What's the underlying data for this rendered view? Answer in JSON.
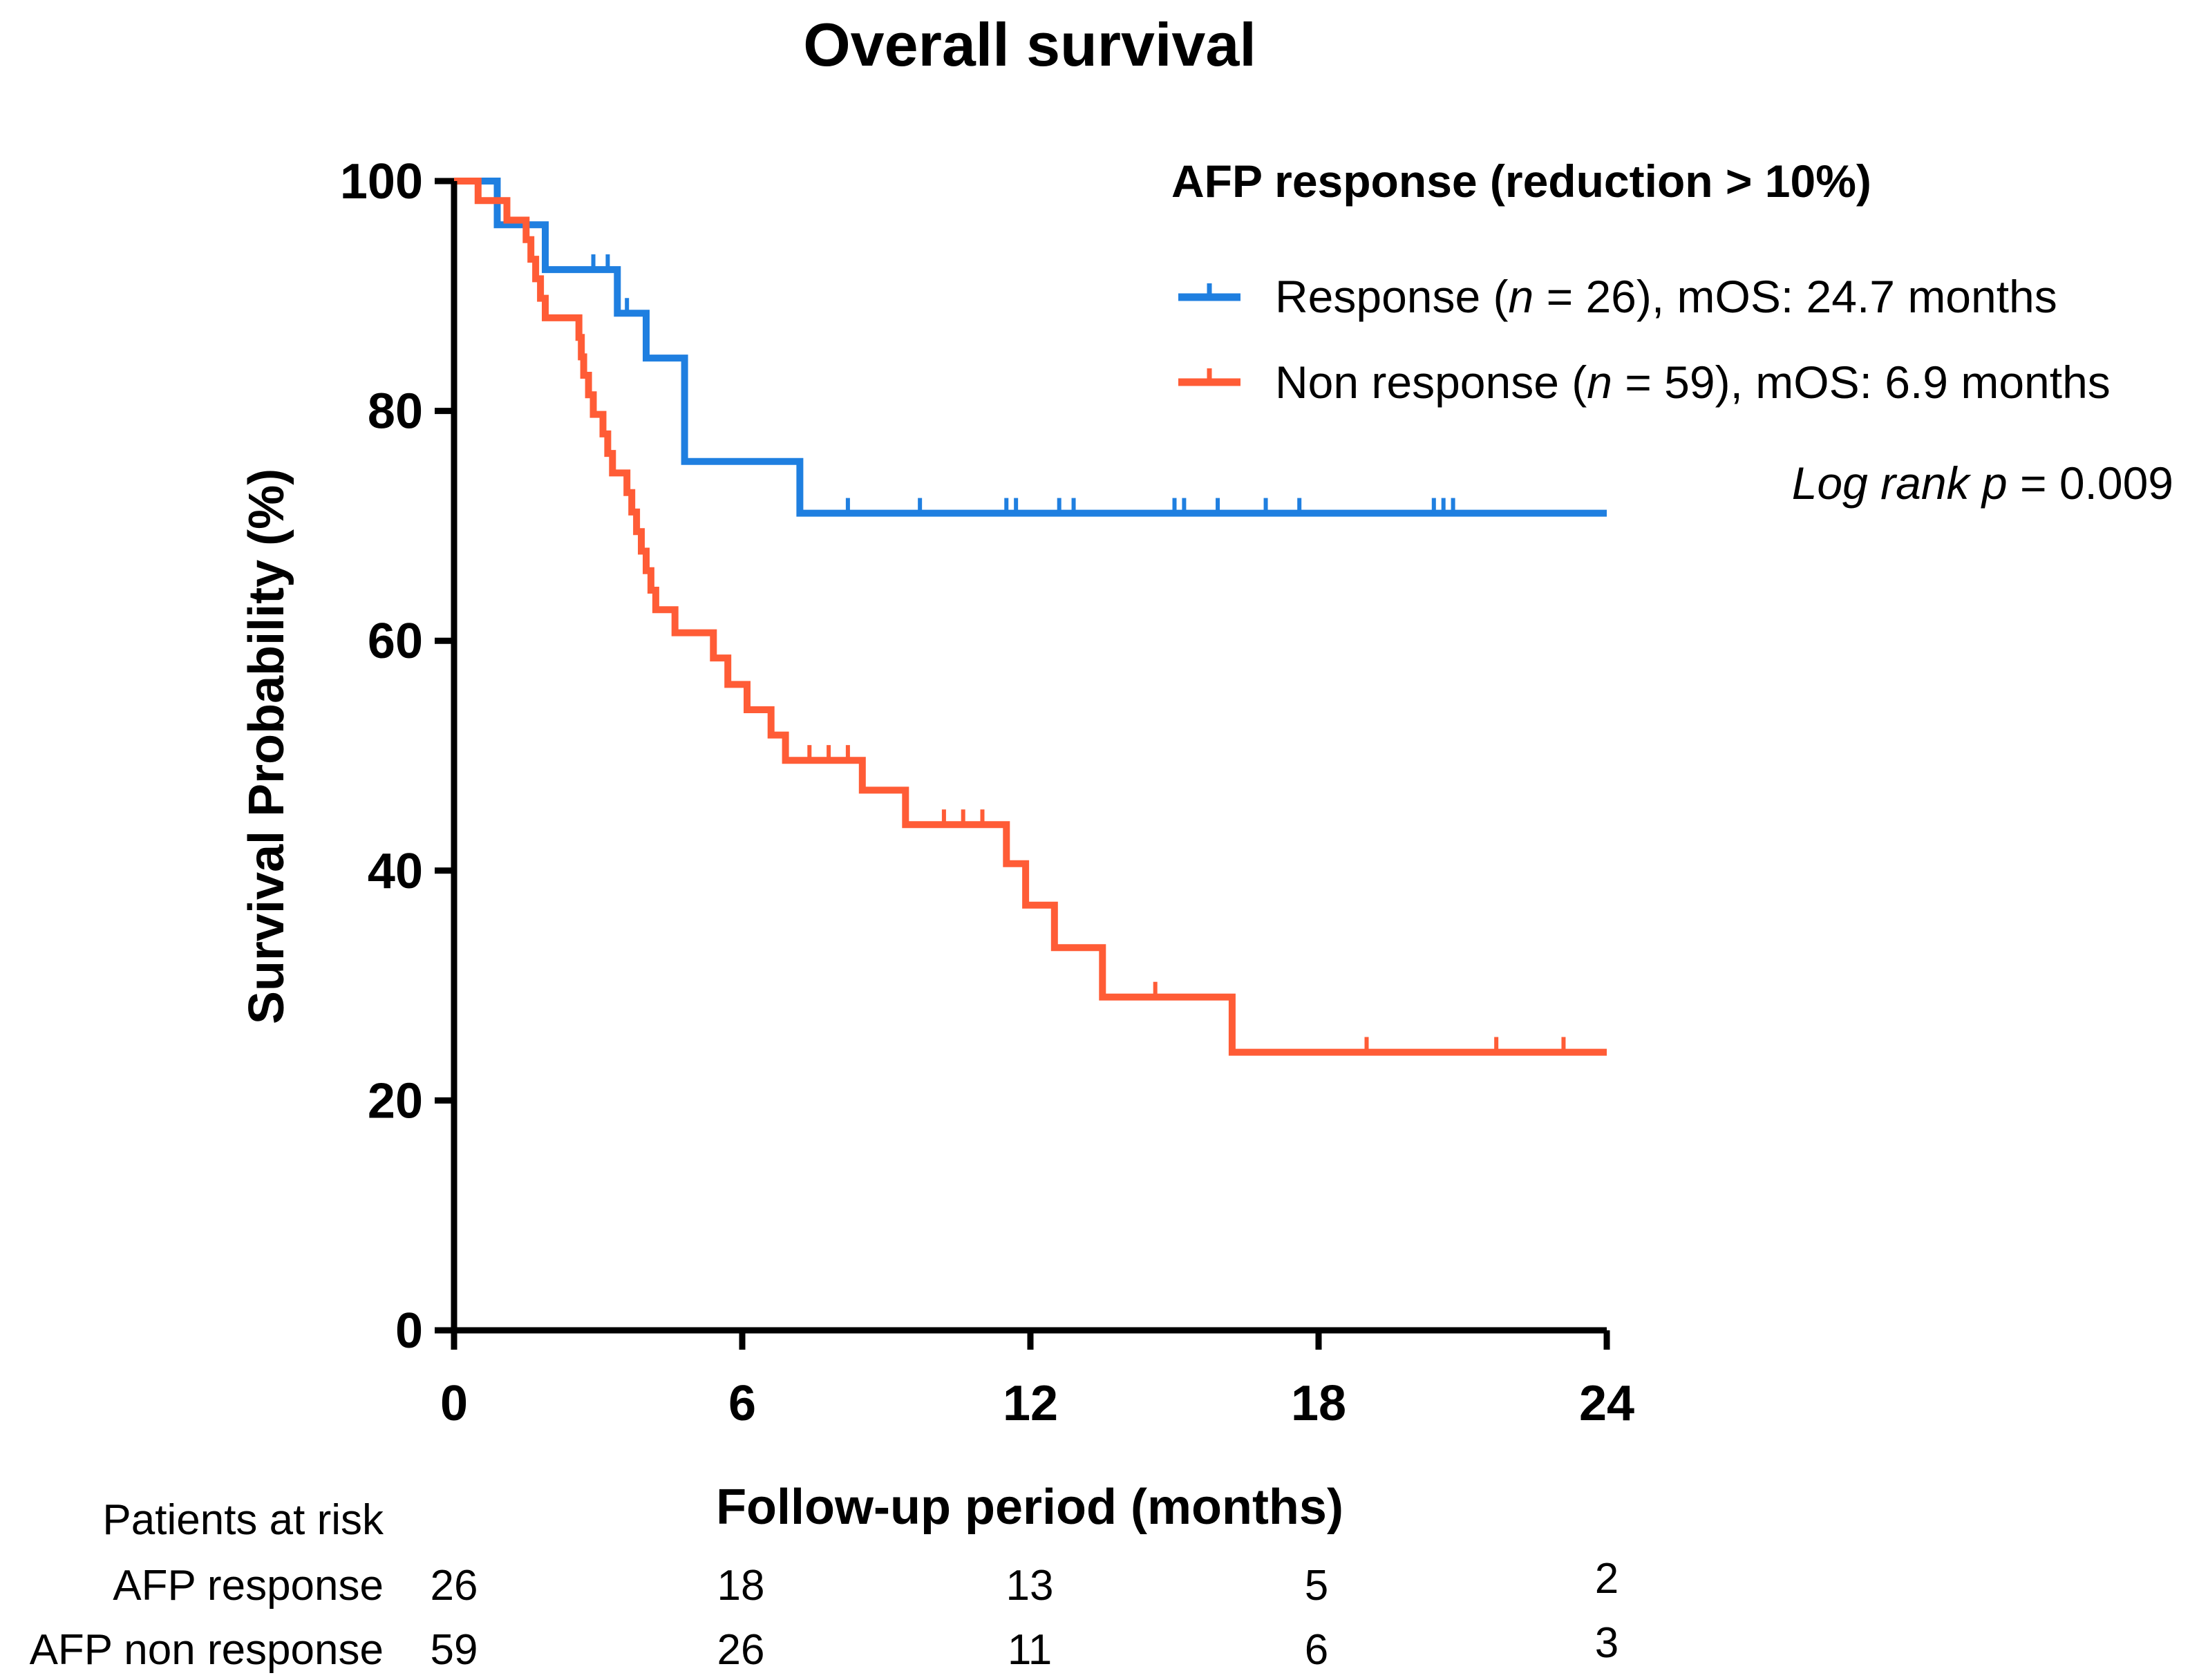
{
  "chart_data": {
    "type": "line",
    "subtype": "kaplan-meier",
    "title": "Overall survival",
    "xlabel": "Follow-up period (months)",
    "ylabel": "Survival Probability (%)",
    "xlim": [
      0,
      24
    ],
    "ylim": [
      0,
      100
    ],
    "xticks": [
      0,
      6,
      12,
      18,
      24
    ],
    "yticks": [
      0,
      20,
      40,
      60,
      80,
      100
    ],
    "grid": false,
    "legend": {
      "title": "AFP response (reduction > 10%)",
      "placement": "top-right",
      "entries": [
        {
          "prefix": "Response (",
          "n_symbol": "n",
          "suffix": " = 26), mOS: 24.7 months"
        },
        {
          "prefix": "Non response (",
          "n_symbol": "n",
          "suffix": " = 59), mOS: 6.9 months"
        }
      ]
    },
    "annotation": {
      "italic_part": "Log rank p",
      "value_part": " = 0.009"
    },
    "series": [
      {
        "name": "Response",
        "color": "#1f7fe0",
        "steps": [
          [
            0,
            100
          ],
          [
            0.9,
            100
          ],
          [
            0.9,
            96.2
          ],
          [
            1.9,
            96.2
          ],
          [
            1.9,
            92.3
          ],
          [
            3.4,
            92.3
          ],
          [
            3.4,
            88.5
          ],
          [
            4.0,
            88.5
          ],
          [
            4.0,
            84.6
          ],
          [
            4.8,
            84.6
          ],
          [
            4.8,
            75.6
          ],
          [
            7.2,
            75.6
          ],
          [
            7.2,
            71.1
          ],
          [
            24,
            71.1
          ]
        ],
        "censored": [
          [
            2.9,
            92.3
          ],
          [
            3.2,
            92.3
          ],
          [
            3.6,
            88.5
          ],
          [
            8.2,
            71.1
          ],
          [
            9.7,
            71.1
          ],
          [
            11.5,
            71.1
          ],
          [
            11.7,
            71.1
          ],
          [
            12.6,
            71.1
          ],
          [
            12.9,
            71.1
          ],
          [
            15.0,
            71.1
          ],
          [
            15.2,
            71.1
          ],
          [
            15.9,
            71.1
          ],
          [
            16.9,
            71.1
          ],
          [
            17.6,
            71.1
          ],
          [
            20.4,
            71.1
          ],
          [
            20.6,
            71.1
          ],
          [
            20.8,
            71.1
          ]
        ]
      },
      {
        "name": "Non response",
        "color": "#ff5c36",
        "steps": [
          [
            0,
            100
          ],
          [
            0.5,
            100
          ],
          [
            0.5,
            98.3
          ],
          [
            1.1,
            98.3
          ],
          [
            1.1,
            96.6
          ],
          [
            1.5,
            96.6
          ],
          [
            1.5,
            94.9
          ],
          [
            1.6,
            94.9
          ],
          [
            1.6,
            93.2
          ],
          [
            1.7,
            93.2
          ],
          [
            1.7,
            91.5
          ],
          [
            1.8,
            91.5
          ],
          [
            1.8,
            89.8
          ],
          [
            1.9,
            89.8
          ],
          [
            1.9,
            88.1
          ],
          [
            2.6,
            88.1
          ],
          [
            2.6,
            86.4
          ],
          [
            2.65,
            86.4
          ],
          [
            2.65,
            84.7
          ],
          [
            2.7,
            84.7
          ],
          [
            2.7,
            83.1
          ],
          [
            2.8,
            83.1
          ],
          [
            2.8,
            81.4
          ],
          [
            2.9,
            81.4
          ],
          [
            2.9,
            79.7
          ],
          [
            3.1,
            79.7
          ],
          [
            3.1,
            78.0
          ],
          [
            3.2,
            78.0
          ],
          [
            3.2,
            76.3
          ],
          [
            3.3,
            76.3
          ],
          [
            3.3,
            74.6
          ],
          [
            3.6,
            74.6
          ],
          [
            3.6,
            72.9
          ],
          [
            3.7,
            72.9
          ],
          [
            3.7,
            71.2
          ],
          [
            3.8,
            71.2
          ],
          [
            3.8,
            69.5
          ],
          [
            3.9,
            69.5
          ],
          [
            3.9,
            67.8
          ],
          [
            4.0,
            67.8
          ],
          [
            4.0,
            66.1
          ],
          [
            4.1,
            66.1
          ],
          [
            4.1,
            64.4
          ],
          [
            4.2,
            64.4
          ],
          [
            4.2,
            62.7
          ],
          [
            4.6,
            62.7
          ],
          [
            4.6,
            60.7
          ],
          [
            5.4,
            60.7
          ],
          [
            5.4,
            58.5
          ],
          [
            5.7,
            58.5
          ],
          [
            5.7,
            56.2
          ],
          [
            6.1,
            56.2
          ],
          [
            6.1,
            54.0
          ],
          [
            6.6,
            54.0
          ],
          [
            6.6,
            51.8
          ],
          [
            6.9,
            51.8
          ],
          [
            6.9,
            49.6
          ],
          [
            8.5,
            49.6
          ],
          [
            8.5,
            47.0
          ],
          [
            9.4,
            47.0
          ],
          [
            9.4,
            44.0
          ],
          [
            11.5,
            44.0
          ],
          [
            11.5,
            40.6
          ],
          [
            11.9,
            40.6
          ],
          [
            11.9,
            37.0
          ],
          [
            12.5,
            37.0
          ],
          [
            12.5,
            33.3
          ],
          [
            13.5,
            33.3
          ],
          [
            13.5,
            29.0
          ],
          [
            16.2,
            29.0
          ],
          [
            16.2,
            24.2
          ],
          [
            24,
            24.2
          ]
        ],
        "censored": [
          [
            7.4,
            49.6
          ],
          [
            7.8,
            49.6
          ],
          [
            8.2,
            49.6
          ],
          [
            10.2,
            44.0
          ],
          [
            10.6,
            44.0
          ],
          [
            11.0,
            44.0
          ],
          [
            14.6,
            29.0
          ],
          [
            19.0,
            24.2
          ],
          [
            21.7,
            24.2
          ],
          [
            23.1,
            24.2
          ]
        ]
      }
    ],
    "risk_table": {
      "header": "Patients at risk",
      "rows": [
        {
          "label": "AFP response",
          "values": [
            "26",
            "18",
            "13",
            "5",
            "2"
          ]
        },
        {
          "label": "AFP non response",
          "values": [
            "59",
            "26",
            "11",
            "6",
            "3"
          ]
        }
      ]
    }
  }
}
